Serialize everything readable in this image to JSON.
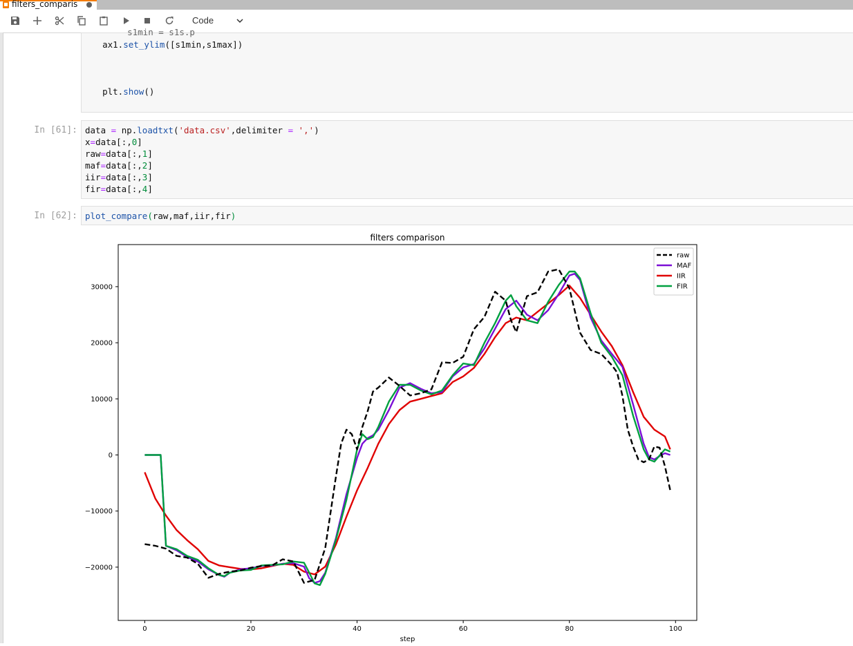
{
  "tab": {
    "title": "filters_comparis"
  },
  "toolbar": {
    "buttons": [
      "save-icon",
      "plus-icon",
      "scissors-icon",
      "copy-icon",
      "paste-icon",
      "run-icon",
      "stop-icon",
      "restart-icon"
    ],
    "cell_type": "Code"
  },
  "cells": {
    "top_partial": "    s1min = s1s.p",
    "top_line1": "    ax1.set_ylim([s1min,s1max])",
    "top_line2": "    plt.show()",
    "c61": {
      "prompt": "In [61]:",
      "lines": [
        "data = np.loadtxt('data.csv',delimiter = ',')",
        "x=data[:,0]",
        "raw=data[:,1]",
        "maf=data[:,2]",
        "iir=data[:,3]",
        "fir=data[:,4]"
      ]
    },
    "c62": {
      "prompt": "In [62]:",
      "line": "plot_compare(raw,maf,iir,fir)"
    }
  },
  "chart_data": {
    "type": "line",
    "title": "filters comparison",
    "xlabel": "step",
    "ylabel": "",
    "xlim": [
      -5,
      104
    ],
    "ylim": [
      -29500,
      37500
    ],
    "xticks": [
      0,
      20,
      40,
      60,
      80,
      100
    ],
    "yticks": [
      -20000,
      -10000,
      0,
      10000,
      20000,
      30000
    ],
    "legend_position": "top-right",
    "grid": false,
    "series": [
      {
        "name": "raw",
        "color": "#000000",
        "dashed": true,
        "x": [
          0,
          2,
          4,
          6,
          8,
          10,
          12,
          14,
          16,
          18,
          20,
          22,
          24,
          26,
          28,
          30,
          32,
          34,
          36,
          37,
          38,
          39,
          40,
          41,
          42,
          43,
          44,
          46,
          48,
          50,
          52,
          54,
          56,
          58,
          60,
          62,
          64,
          66,
          68,
          69,
          70,
          72,
          74,
          76,
          78,
          80,
          82,
          84,
          86,
          88,
          89,
          90,
          91,
          92,
          93,
          94,
          95,
          96,
          97,
          98,
          99
        ],
        "y": [
          -15900,
          -16200,
          -16700,
          -18000,
          -18300,
          -19400,
          -21900,
          -21200,
          -20800,
          -20600,
          -20100,
          -19800,
          -19700,
          -18600,
          -19000,
          -22800,
          -22300,
          -16600,
          -4000,
          2000,
          4500,
          3700,
          1000,
          5000,
          7800,
          11300,
          12000,
          13800,
          12300,
          10600,
          11000,
          11700,
          16500,
          16400,
          17500,
          22400,
          24600,
          29100,
          27500,
          24000,
          21900,
          28300,
          29000,
          32700,
          33100,
          29700,
          21800,
          18700,
          18000,
          16000,
          14700,
          10500,
          4500,
          1500,
          -800,
          -1300,
          -800,
          1500,
          1300,
          -2000,
          -6300
        ]
      },
      {
        "name": "MAF",
        "color": "#7b0fd6",
        "dashed": false,
        "x": [
          0,
          1,
          2,
          3,
          4,
          6,
          8,
          10,
          12,
          14,
          15,
          16,
          18,
          20,
          22,
          24,
          26,
          28,
          30,
          31,
          32,
          33,
          34,
          36,
          38,
          40,
          41,
          42,
          43,
          44,
          46,
          48,
          50,
          52,
          54,
          56,
          58,
          60,
          62,
          64,
          66,
          68,
          70,
          72,
          74,
          76,
          78,
          80,
          81,
          82,
          84,
          86,
          88,
          90,
          92,
          94,
          95,
          96,
          97,
          98,
          99
        ],
        "y": [
          0,
          0,
          0,
          0,
          -16200,
          -17000,
          -18200,
          -19000,
          -20400,
          -21400,
          -21700,
          -21000,
          -20400,
          -20200,
          -19800,
          -19700,
          -19400,
          -19300,
          -19900,
          -22000,
          -22800,
          -22500,
          -21000,
          -14900,
          -7000,
          -500,
          2000,
          3000,
          3500,
          4500,
          8000,
          12000,
          12800,
          11800,
          11000,
          11200,
          14000,
          15600,
          16200,
          19000,
          22500,
          26000,
          27500,
          25000,
          24000,
          25800,
          28700,
          32000,
          32300,
          31200,
          24500,
          20400,
          18000,
          15700,
          9000,
          2000,
          -400,
          -800,
          -200,
          300,
          0
        ]
      },
      {
        "name": "IIR",
        "color": "#e00000",
        "dashed": false,
        "x": [
          0,
          2,
          4,
          6,
          8,
          10,
          12,
          14,
          16,
          18,
          20,
          22,
          24,
          26,
          28,
          30,
          32,
          34,
          36,
          38,
          40,
          42,
          44,
          46,
          48,
          50,
          52,
          54,
          56,
          58,
          60,
          62,
          64,
          66,
          68,
          70,
          72,
          74,
          76,
          78,
          80,
          82,
          84,
          86,
          88,
          90,
          92,
          94,
          96,
          98,
          99
        ],
        "y": [
          -3100,
          -7800,
          -10800,
          -13400,
          -15200,
          -16800,
          -18900,
          -19700,
          -20000,
          -20300,
          -20400,
          -20200,
          -19800,
          -19400,
          -19600,
          -20800,
          -21300,
          -19900,
          -16000,
          -11000,
          -6300,
          -2300,
          2000,
          5500,
          8000,
          9500,
          10000,
          10500,
          11000,
          13000,
          14000,
          15500,
          18000,
          21000,
          23500,
          24500,
          24000,
          25500,
          27000,
          28500,
          30200,
          28000,
          25000,
          22000,
          19400,
          16000,
          11200,
          6800,
          4500,
          3300,
          1000
        ]
      },
      {
        "name": "FIR",
        "color": "#00a040",
        "dashed": false,
        "x": [
          0,
          1,
          2,
          3,
          4,
          6,
          8,
          10,
          12,
          14,
          15,
          16,
          18,
          20,
          22,
          24,
          26,
          28,
          30,
          31,
          32,
          33,
          34,
          36,
          38,
          40,
          41,
          42,
          43,
          44,
          46,
          48,
          50,
          52,
          54,
          56,
          58,
          60,
          62,
          64,
          66,
          68,
          69,
          70,
          72,
          74,
          76,
          78,
          80,
          81,
          82,
          84,
          86,
          88,
          90,
          92,
          94,
          95,
          96,
          97,
          98,
          99
        ],
        "y": [
          0,
          0,
          0,
          0,
          -16200,
          -16800,
          -18000,
          -18700,
          -20200,
          -21400,
          -21600,
          -21000,
          -20600,
          -20500,
          -19700,
          -19600,
          -19500,
          -19000,
          -19200,
          -21000,
          -22900,
          -23200,
          -21200,
          -15200,
          -8000,
          1000,
          3700,
          2800,
          3200,
          5000,
          9500,
          12500,
          12500,
          11500,
          10800,
          11500,
          14200,
          16300,
          16000,
          20000,
          23500,
          27500,
          28500,
          26500,
          24000,
          23500,
          27300,
          30300,
          32700,
          32700,
          31500,
          25300,
          20000,
          17500,
          14200,
          7000,
          1000,
          -800,
          -1200,
          -100,
          1000,
          600
        ]
      }
    ]
  }
}
